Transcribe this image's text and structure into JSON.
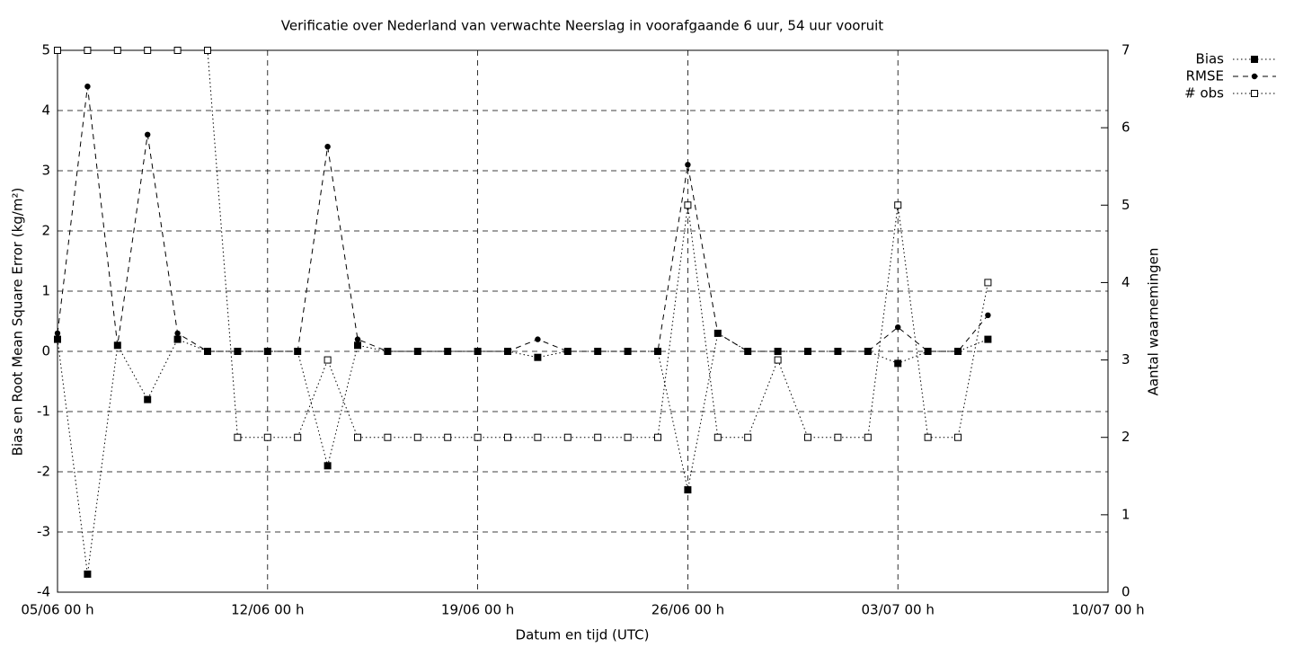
{
  "chart_data": {
    "type": "line",
    "title": "Verificatie over Nederland van verwachte Neerslag in voorafgaande 6 uur, 54 uur vooruit",
    "x_label": "Datum en tijd (UTC)",
    "y_label": "Bias en Root Mean Square Error (kg/m²)",
    "y2_label": "Aantal waarnemingen",
    "x": [
      "05/06 00 h",
      "06/06 00 h",
      "07/06 00 h",
      "08/06 00 h",
      "09/06 00 h",
      "10/06 00 h",
      "11/06 00 h",
      "12/06 00 h",
      "13/06 00 h",
      "14/06 00 h",
      "15/06 00 h",
      "16/06 00 h",
      "17/06 00 h",
      "18/06 00 h",
      "19/06 00 h",
      "20/06 00 h",
      "21/06 00 h",
      "22/06 00 h",
      "23/06 00 h",
      "24/06 00 h",
      "25/06 00 h",
      "26/06 00 h",
      "27/06 00 h",
      "28/06 00 h",
      "29/06 00 h",
      "30/06 00 h",
      "01/07 00 h",
      "02/07 00 h",
      "03/07 00 h",
      "04/07 00 h",
      "05/07 00 h",
      "06/07 00 h"
    ],
    "xlim": [
      "05/06 00 h",
      "10/07 00 h"
    ],
    "xticks": [
      "05/06 00 h",
      "12/06 00 h",
      "19/06 00 h",
      "26/06 00 h",
      "03/07 00 h",
      "10/07 00 h"
    ],
    "ylim": [
      -4,
      5
    ],
    "yticks": [
      -4,
      -3,
      -2,
      -1,
      0,
      1,
      2,
      3,
      4,
      5
    ],
    "y2lim": [
      0,
      7
    ],
    "y2ticks": [
      0,
      1,
      2,
      3,
      4,
      5,
      6,
      7
    ],
    "grid": true,
    "legend": "top-right",
    "series": [
      {
        "name": "Bias",
        "color": "#000000",
        "marker": "filled-square",
        "dash": "dotted",
        "values": [
          0.2,
          -3.7,
          0.1,
          -0.8,
          0.2,
          0,
          0,
          0,
          0,
          -1.9,
          0.1,
          0,
          0,
          0,
          0,
          0,
          -0.1,
          0,
          0,
          0,
          0,
          -2.3,
          0.3,
          0,
          0,
          0,
          0,
          0,
          -0.2,
          0,
          0,
          0.2
        ]
      },
      {
        "name": "RMSE",
        "color": "#000000",
        "marker": "filled-circle",
        "dash": "dashed",
        "values": [
          0.3,
          4.4,
          0.1,
          3.6,
          0.3,
          0,
          0,
          0,
          0,
          3.4,
          0.2,
          0,
          0,
          0,
          0,
          0,
          0.2,
          0,
          0,
          0,
          0,
          3.1,
          0.3,
          0,
          0,
          0,
          0,
          0,
          0.4,
          0,
          0,
          0.6
        ]
      },
      {
        "name": "# obs",
        "color": "#000000",
        "marker": "open-square",
        "dash": "dotted",
        "axis": "y2",
        "values": [
          7,
          7,
          7,
          7,
          7,
          7,
          2,
          2,
          2,
          3,
          2,
          2,
          2,
          2,
          2,
          2,
          2,
          2,
          2,
          2,
          2,
          5,
          2,
          2,
          3,
          2,
          2,
          2,
          5,
          2,
          2,
          4
        ]
      }
    ]
  }
}
